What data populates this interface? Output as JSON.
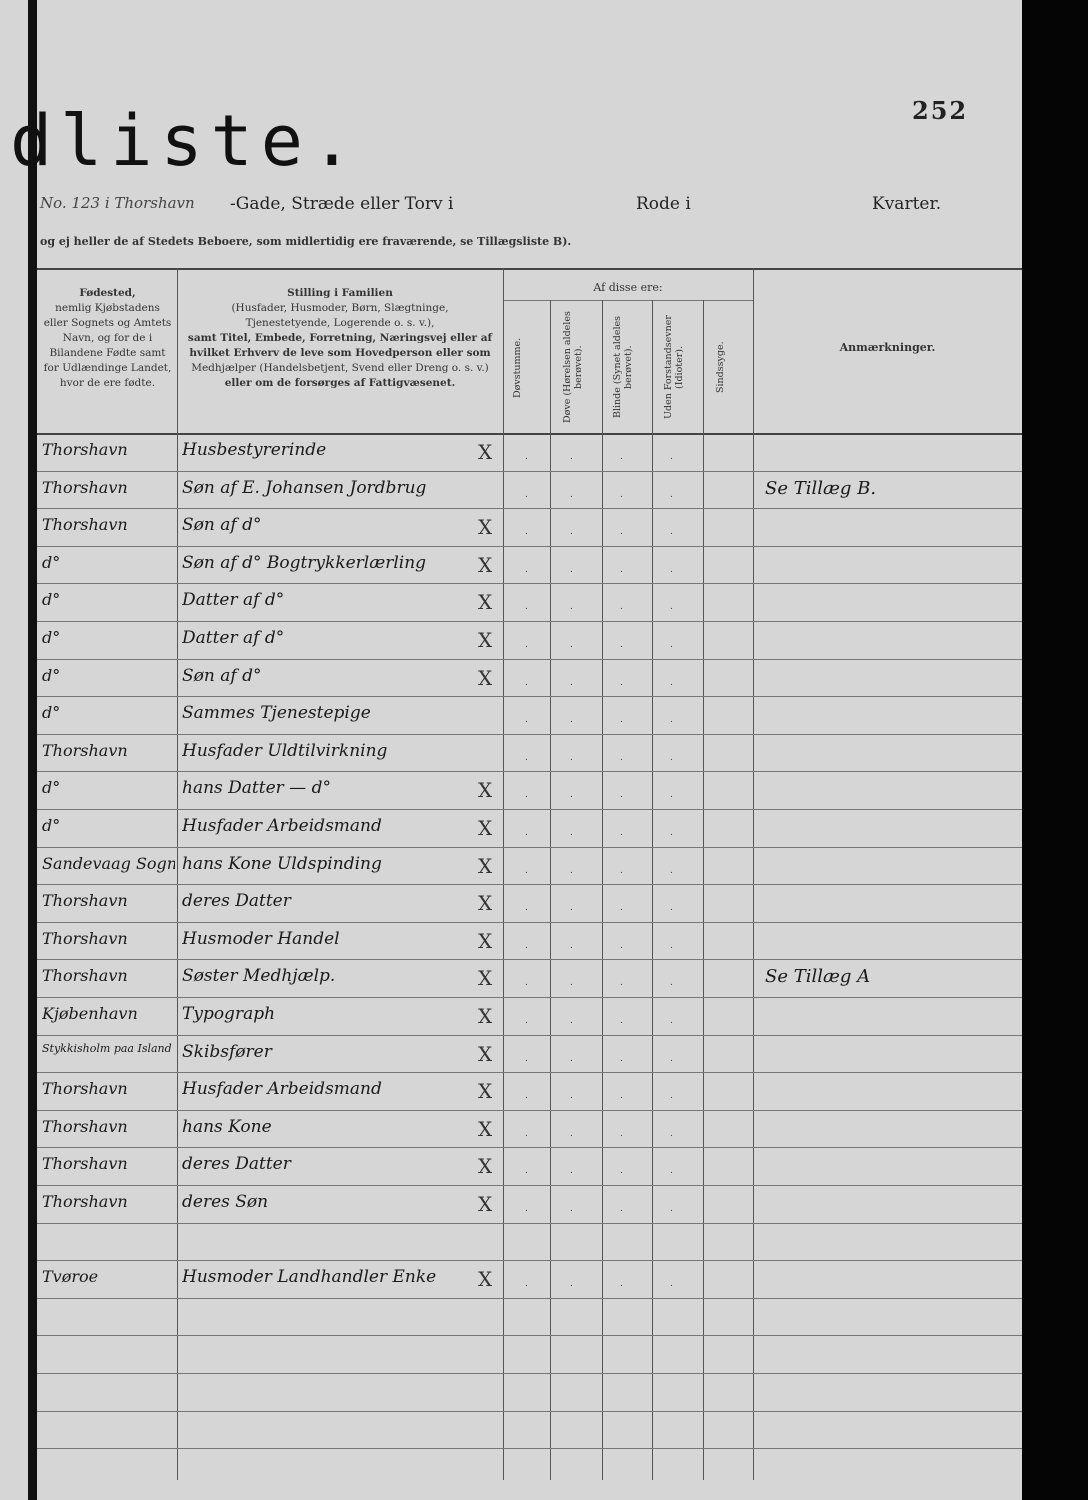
{
  "header": {
    "title": "liste.",
    "title_partial_letter": "d",
    "page_number": "252",
    "address_handwritten": "No. 123 i Thorshavn",
    "street_label": "-Gade, Stræde eller Torv i",
    "rode_label": "Rode i",
    "kvarter_label": "Kvarter.",
    "note": "og ej heller de af Stedets Beboere, som midlertidig ere fraværende, se Tillægsliste B)."
  },
  "columns": {
    "fodested": [
      "Fødested,",
      "nemlig Kjøbstadens",
      "eller Sognets og Amtets",
      "Navn, og for de i",
      "Bilandene Fødte samt",
      "for Udlændinge Landet,",
      "hvor de ere fødte."
    ],
    "stilling": [
      "Stilling i Familien",
      "(Husfader, Husmoder, Børn, Slægtninge,",
      "Tjenestetyende, Logerende o. s. v.),",
      "samt Titel, Embede, Forretning, Næringsvej eller af",
      "hvilket Erhverv de leve som Hovedperson eller som",
      "Medhjælper (Handelsbetjent, Svend eller Dreng o. s. v.)",
      "eller om de forsørges af Fattigvæsenet."
    ],
    "af_disse_ere": "Af disse ere:",
    "sub": [
      "Døvstumme.",
      "Døve (Hørelsen aldeles berøvet).",
      "Blinde (Synet aldeles berøvet).",
      "Uden Forstandsevner (Idioter).",
      "Sindssyge."
    ],
    "anmaerkninger": "Anmærkninger."
  },
  "rows": [
    {
      "birthplace": "Thorshavn",
      "position": "Husbestyrerinde",
      "check": "X",
      "remark": ""
    },
    {
      "birthplace": "Thorshavn",
      "position": "Søn af E. Johansen Jordbrug",
      "check": "",
      "remark": "Se Tillæg B."
    },
    {
      "birthplace": "Thorshavn",
      "position": "Søn af d°",
      "check": "X",
      "remark": ""
    },
    {
      "birthplace": "d°",
      "position": "Søn af d° Bogtrykkerlærling",
      "check": "X",
      "remark": ""
    },
    {
      "birthplace": "d°",
      "position": "Datter af d°",
      "check": "X",
      "remark": ""
    },
    {
      "birthplace": "d°",
      "position": "Datter af d°",
      "check": "X",
      "remark": ""
    },
    {
      "birthplace": "d°",
      "position": "Søn af d°",
      "check": "X",
      "remark": ""
    },
    {
      "birthplace": "d°",
      "position": "Sammes Tjenestepige",
      "check": "",
      "remark": ""
    },
    {
      "birthplace": "Thorshavn",
      "position": "Husfader Uldtilvirkning",
      "check": "",
      "remark": ""
    },
    {
      "birthplace": "d°",
      "position": "hans Datter — d°",
      "check": "X",
      "remark": ""
    },
    {
      "birthplace": "d°",
      "position": "Husfader Arbeidsmand",
      "check": "X",
      "remark": ""
    },
    {
      "birthplace": "Sandevaag Sogn",
      "position": "hans Kone Uldspinding",
      "check": "X",
      "remark": ""
    },
    {
      "birthplace": "Thorshavn",
      "position": "deres Datter",
      "check": "X",
      "remark": ""
    },
    {
      "birthplace": "Thorshavn",
      "position": "Husmoder Handel",
      "check": "X",
      "remark": ""
    },
    {
      "birthplace": "Thorshavn",
      "position": "Søster Medhjælp.",
      "check": "X",
      "remark": "Se Tillæg A"
    },
    {
      "birthplace": "Kjøbenhavn",
      "position": "Typograph",
      "check": "X",
      "remark": ""
    },
    {
      "birthplace": "Stykkisholm paa Island",
      "position": "Skibsfører",
      "check": "X",
      "remark": ""
    },
    {
      "birthplace": "Thorshavn",
      "position": "Husfader Arbeidsmand",
      "check": "X",
      "remark": ""
    },
    {
      "birthplace": "Thorshavn",
      "position": "hans Kone",
      "check": "X",
      "remark": ""
    },
    {
      "birthplace": "Thorshavn",
      "position": "deres Datter",
      "check": "X",
      "remark": ""
    },
    {
      "birthplace": "Thorshavn",
      "position": "deres Søn",
      "check": "X",
      "remark": ""
    },
    {
      "birthplace": "",
      "position": "",
      "check": "",
      "remark": ""
    },
    {
      "birthplace": "Tvøroe",
      "position": "Husmoder Landhandler Enke",
      "check": "X",
      "remark": ""
    }
  ]
}
